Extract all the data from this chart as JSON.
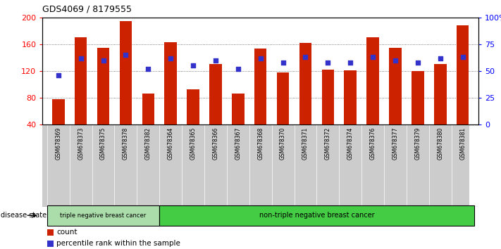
{
  "title": "GDS4069 / 8179555",
  "samples": [
    "GSM678369",
    "GSM678373",
    "GSM678375",
    "GSM678378",
    "GSM678382",
    "GSM678364",
    "GSM678365",
    "GSM678366",
    "GSM678367",
    "GSM678368",
    "GSM678370",
    "GSM678371",
    "GSM678372",
    "GSM678374",
    "GSM678376",
    "GSM678377",
    "GSM678379",
    "GSM678380",
    "GSM678381"
  ],
  "counts": [
    78,
    170,
    155,
    195,
    86,
    163,
    93,
    130,
    86,
    153,
    118,
    162,
    122,
    121,
    170,
    155,
    120,
    130,
    188
  ],
  "percentile_ranks": [
    46,
    62,
    60,
    65,
    52,
    62,
    55,
    60,
    52,
    62,
    58,
    63,
    58,
    58,
    63,
    60,
    58,
    62,
    63
  ],
  "bar_color": "#cc2200",
  "blue_color": "#3333cc",
  "group1_label": "triple negative breast cancer",
  "group2_label": "non-triple negative breast cancer",
  "group1_count": 5,
  "ylim_left": [
    40,
    200
  ],
  "ylim_right": [
    0,
    100
  ],
  "yticks_left": [
    40,
    80,
    120,
    160,
    200
  ],
  "yticks_right": [
    0,
    25,
    50,
    75,
    100
  ],
  "right_tick_labels": [
    "0",
    "25",
    "50",
    "75",
    "100%"
  ],
  "bg_color": "#ffffff",
  "legend_count_label": "count",
  "legend_pct_label": "percentile rank within the sample",
  "group1_color": "#aaddaa",
  "group2_color": "#44cc44",
  "label_area_color": "#cccccc",
  "disease_state_label": "disease state"
}
